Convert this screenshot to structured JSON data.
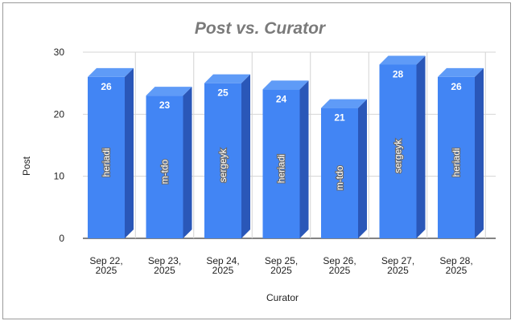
{
  "chart_data": {
    "type": "bar",
    "title": "Post vs. Curator",
    "xlabel": "Curator",
    "ylabel": "Post",
    "ylim": [
      0,
      30
    ],
    "yticks": [
      "0",
      "10",
      "20",
      "30"
    ],
    "grid": true,
    "categories": [
      [
        "Sep 22,",
        "2025"
      ],
      [
        "Sep 23,",
        "2025"
      ],
      [
        "Sep 24,",
        "2025"
      ],
      [
        "Sep 25,",
        "2025"
      ],
      [
        "Sep 26,",
        "2025"
      ],
      [
        "Sep 27,",
        "2025"
      ],
      [
        "Sep 28,",
        "2025"
      ]
    ],
    "values": [
      26,
      23,
      25,
      24,
      21,
      28,
      26
    ],
    "bar_labels": [
      "heriadi",
      "m-tdo",
      "sergeyk",
      "heriadi",
      "m-tdo",
      "sergeyk",
      "heriadi"
    ],
    "colors": {
      "front": "#4285f4",
      "side": "#2a57b8",
      "top": "#5f9bf7",
      "grid": "#d4d4d4",
      "base": "#5a5a5a"
    }
  }
}
